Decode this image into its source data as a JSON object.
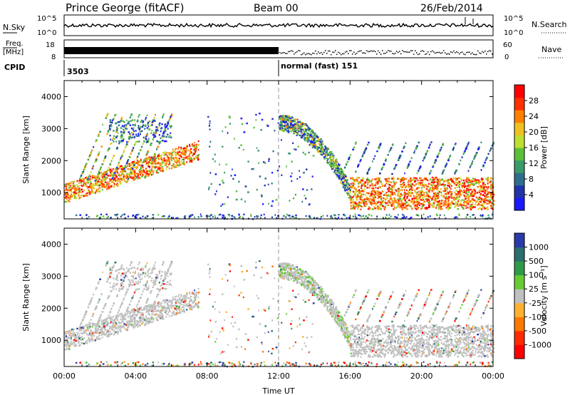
{
  "header": {
    "station": "Prince George (fitACF)",
    "beam": "Beam 00",
    "date": "26/Feb/2014"
  },
  "top_panels": {
    "nsky_label": "N.Sky",
    "nsky_ticks": [
      "10^5",
      "10^0"
    ],
    "nsearch_label": "N.Search",
    "nsearch_ticks": [
      "10^5",
      "10^0"
    ],
    "freq_label_1": "Freq.",
    "freq_label_2": "[MHz]",
    "freq_ticks": [
      "18",
      "8"
    ],
    "nave_label": "Nave",
    "nave_ticks": [
      "60",
      "0"
    ],
    "cpid_label": "CPID",
    "cpid_values": [
      "3503",
      "normal (fast) 151"
    ]
  },
  "chart_data": [
    {
      "type": "heatmap",
      "title": "",
      "xlabel": "",
      "ylabel": "Slant Range [km]",
      "x_unit": "hours UT",
      "xlim": [
        0,
        24
      ],
      "ylim": [
        180,
        4500
      ],
      "yticks": [
        1000,
        2000,
        3000,
        4000
      ],
      "colorbar": {
        "label": "Power [dB]",
        "ticks": [
          4,
          8,
          12,
          16,
          20,
          24,
          28
        ],
        "range": [
          0,
          32
        ],
        "colors": [
          "#1a1aff",
          "#2233aa",
          "#2c6e8c",
          "#3a9a6a",
          "#5bbf3a",
          "#bfdf30",
          "#f0c020",
          "#ff8000",
          "#ff3000",
          "#ff0000"
        ]
      }
    },
    {
      "type": "heatmap",
      "title": "",
      "xlabel": "Time UT",
      "ylabel": "Slant Range [km]",
      "x_unit": "hours UT",
      "xlim": [
        0,
        24
      ],
      "ylim": [
        180,
        4500
      ],
      "yticks": [
        1000,
        2000,
        3000,
        4000
      ],
      "xticks": [
        "00:00",
        "04:00",
        "08:00",
        "12:00",
        "16:00",
        "20:00",
        "00:00"
      ],
      "colorbar": {
        "label": "Velocity [m s⁻¹]",
        "ticks": [
          "1000",
          "500",
          "100",
          "25",
          "-25",
          "-100",
          "-500",
          "-1000"
        ],
        "colors": [
          "#2a3aa8",
          "#2a6e6e",
          "#2f9a4a",
          "#66cc33",
          "#c0c0c0",
          "#ffb030",
          "#ff7800",
          "#ff2a00",
          "#ff0000"
        ]
      }
    }
  ],
  "colors": {
    "ground_scatter": "#c0c0c0",
    "midnight_line": "#9a9a9a"
  }
}
